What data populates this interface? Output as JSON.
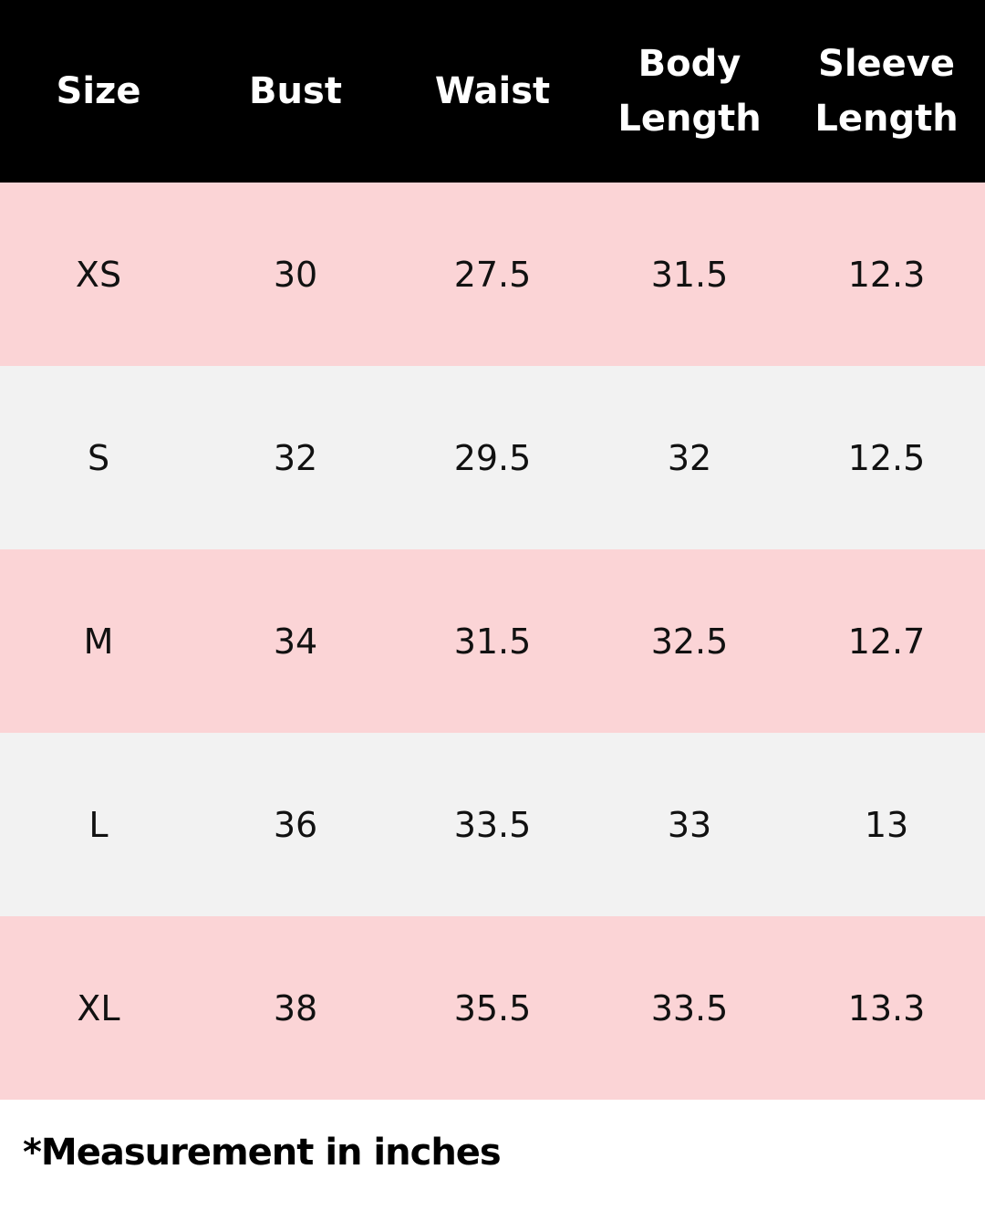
{
  "table": {
    "header": [
      "Size",
      "Bust",
      "Waist",
      "Body Length",
      "Sleeve Length"
    ],
    "rows": [
      [
        "XS",
        "30",
        "27.5",
        "31.5",
        "12.3"
      ],
      [
        "S",
        "32",
        "29.5",
        "32",
        "12.5"
      ],
      [
        "M",
        "34",
        "31.5",
        "32.5",
        "12.7"
      ],
      [
        "L",
        "36",
        "33.5",
        "33",
        "13"
      ],
      [
        "XL",
        "38",
        "35.5",
        "33.5",
        "13.3"
      ]
    ]
  },
  "note": "*Measurement in inches"
}
